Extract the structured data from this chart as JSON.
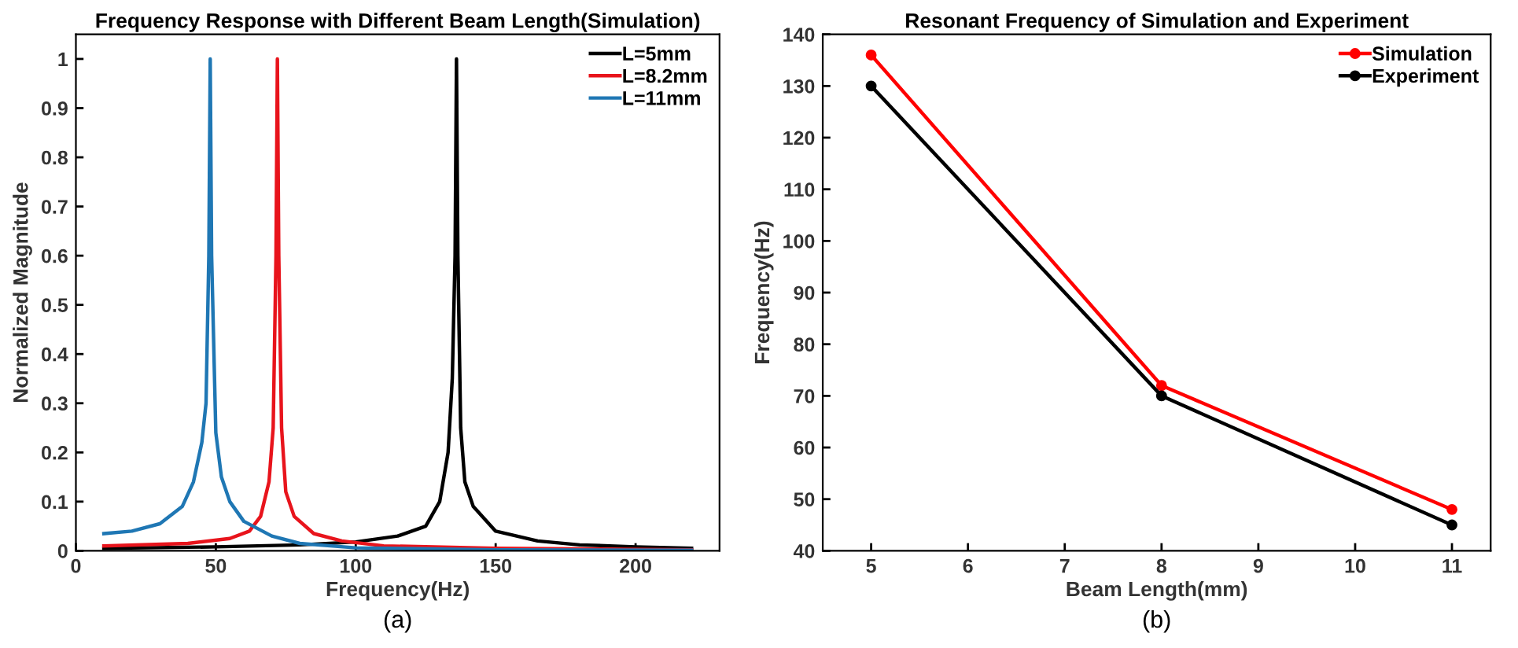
{
  "chart_data": [
    {
      "type": "line",
      "title": "Frequency Response with Different Beam Length(Simulation)",
      "xlabel": "Frequency(Hz)",
      "ylabel": "Normalized Magnitude",
      "annotations": [
        "(a)"
      ],
      "xlim": [
        0,
        230
      ],
      "ylim": [
        0,
        1.05
      ],
      "xticks": [
        0,
        50,
        100,
        150,
        200
      ],
      "yticks": [
        0,
        0.1,
        0.2,
        0.3,
        0.4,
        0.5,
        0.6,
        0.7,
        0.8,
        0.9,
        1
      ],
      "grid": false,
      "legend": "top right",
      "marker": "none",
      "line_style": "solid",
      "series": [
        {
          "name": "L=5mm",
          "color": "#000000",
          "x": [
            10,
            50,
            80,
            100,
            115,
            125,
            130,
            133,
            134.5,
            135.5,
            136,
            136.5,
            137.5,
            139,
            142,
            150,
            165,
            180,
            200,
            220
          ],
          "values": [
            0.005,
            0.008,
            0.012,
            0.018,
            0.03,
            0.05,
            0.1,
            0.2,
            0.35,
            0.6,
            1.0,
            0.6,
            0.25,
            0.14,
            0.09,
            0.04,
            0.02,
            0.012,
            0.008,
            0.005
          ]
        },
        {
          "name": "L=8.2mm",
          "color": "#e8141c",
          "x": [
            10,
            40,
            55,
            62,
            66,
            69,
            70.5,
            71.5,
            72,
            72.5,
            73.5,
            75,
            78,
            85,
            95,
            110,
            150,
            220
          ],
          "values": [
            0.01,
            0.015,
            0.025,
            0.04,
            0.07,
            0.14,
            0.25,
            0.6,
            1.0,
            0.6,
            0.25,
            0.12,
            0.07,
            0.035,
            0.02,
            0.01,
            0.005,
            0.002
          ]
        },
        {
          "name": "L=11mm",
          "color": "#1f77b4",
          "x": [
            10,
            20,
            30,
            38,
            42,
            45,
            46.5,
            47.5,
            48,
            48.5,
            50,
            52,
            55,
            60,
            70,
            80,
            100,
            150,
            220
          ],
          "values": [
            0.035,
            0.04,
            0.055,
            0.09,
            0.14,
            0.22,
            0.3,
            0.6,
            1.0,
            0.6,
            0.24,
            0.15,
            0.1,
            0.06,
            0.03,
            0.015,
            0.006,
            0.002,
            0.001
          ]
        }
      ]
    },
    {
      "type": "line",
      "title": "Resonant Frequency of Simulation and Experiment",
      "xlabel": "Beam Length(mm)",
      "ylabel": "Frequency(Hz)",
      "annotations": [
        "(b)"
      ],
      "xlim": [
        4.5,
        11.4
      ],
      "ylim": [
        40,
        140
      ],
      "xticks": [
        5,
        6,
        7,
        8,
        9,
        10,
        11
      ],
      "yticks": [
        40,
        50,
        60,
        70,
        80,
        90,
        100,
        110,
        120,
        130,
        140
      ],
      "grid": false,
      "legend": "top right",
      "marker": "circle",
      "line_style": "solid",
      "series": [
        {
          "name": "Simulation",
          "color": "#ff0000",
          "x": [
            5,
            8,
            11
          ],
          "values": [
            136,
            72,
            48
          ]
        },
        {
          "name": "Experiment",
          "color": "#000000",
          "x": [
            5,
            8,
            11
          ],
          "values": [
            130,
            70,
            45
          ]
        }
      ]
    }
  ]
}
